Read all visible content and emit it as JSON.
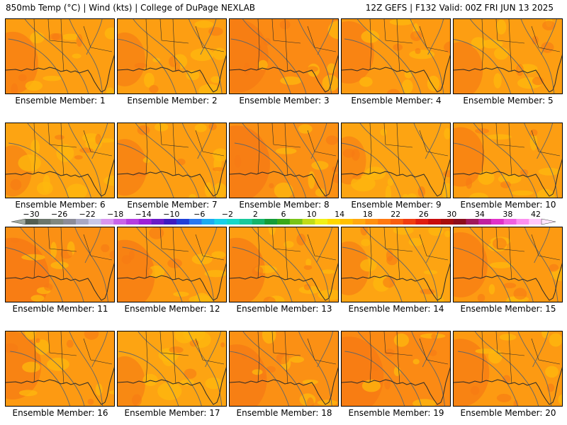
{
  "header": {
    "left": "850mb Temp (°C) | Wind (kts) | College of DuPage NEXLAB",
    "right": "12Z GEFS | F132 Valid: 00Z FRI JUN 13 2025"
  },
  "members": [
    {
      "label": "Ensemble Member: 1",
      "color": "#fd9e12",
      "hot": 0.35,
      "cool": 0.4
    },
    {
      "label": "Ensemble Member: 2",
      "color": "#fd9e12",
      "hot": 0.2,
      "cool": 0.6
    },
    {
      "label": "Ensemble Member: 3",
      "color": "#fb8a14",
      "hot": 0.55,
      "cool": 0.2
    },
    {
      "label": "Ensemble Member: 4",
      "color": "#fd9a12",
      "hot": 0.35,
      "cool": 0.5
    },
    {
      "label": "Ensemble Member: 5",
      "color": "#fd9e12",
      "hot": 0.25,
      "cool": 0.5
    },
    {
      "label": "Ensemble Member: 6",
      "color": "#fda412",
      "hot": 0.15,
      "cool": 0.7
    },
    {
      "label": "Ensemble Member: 7",
      "color": "#fd9e12",
      "hot": 0.25,
      "cool": 0.5
    },
    {
      "label": "Ensemble Member: 8",
      "color": "#fb9014",
      "hot": 0.6,
      "cool": 0.3
    },
    {
      "label": "Ensemble Member: 9",
      "color": "#fda412",
      "hot": 0.1,
      "cool": 0.8
    },
    {
      "label": "Ensemble Member: 10",
      "color": "#fd9e12",
      "hot": 0.3,
      "cool": 0.5
    },
    {
      "label": "Ensemble Member: 11",
      "color": "#fb9014",
      "hot": 0.7,
      "cool": 0.3
    },
    {
      "label": "Ensemble Member: 12",
      "color": "#fd9a12",
      "hot": 0.5,
      "cool": 0.4
    },
    {
      "label": "Ensemble Member: 13",
      "color": "#fd9e12",
      "hot": 0.45,
      "cool": 0.5
    },
    {
      "label": "Ensemble Member: 14",
      "color": "#fda412",
      "hot": 0.2,
      "cool": 0.6
    },
    {
      "label": "Ensemble Member: 15",
      "color": "#fd9a12",
      "hot": 0.4,
      "cool": 0.4
    },
    {
      "label": "Ensemble Member: 16",
      "color": "#fd9a12",
      "hot": 0.45,
      "cool": 0.4
    },
    {
      "label": "Ensemble Member: 17",
      "color": "#fda412",
      "hot": 0.2,
      "cool": 0.6
    },
    {
      "label": "Ensemble Member: 18",
      "color": "#fb9014",
      "hot": 0.5,
      "cool": 0.4
    },
    {
      "label": "Ensemble Member: 19",
      "color": "#fb8a14",
      "hot": 0.65,
      "cool": 0.3
    },
    {
      "label": "Ensemble Member: 20",
      "color": "#fd9a12",
      "hot": 0.45,
      "cool": 0.4
    }
  ],
  "colorbar": {
    "unit": "°C",
    "ticks": [
      "−30",
      "−26",
      "−22",
      "−18",
      "−14",
      "−10",
      "−6",
      "−2",
      "2",
      "6",
      "10",
      "14",
      "18",
      "22",
      "26",
      "30",
      "34",
      "38",
      "42"
    ],
    "colors": [
      "#525e52",
      "#6b766b",
      "#808880",
      "#8c8c99",
      "#a8a8c4",
      "#c8c8e8",
      "#d896f0",
      "#c864e8",
      "#b43ce0",
      "#9c20d8",
      "#6a1cc8",
      "#3c1cc0",
      "#2040d8",
      "#2878f0",
      "#1caaf0",
      "#18d0e8",
      "#14d8c8",
      "#18c89c",
      "#14b46c",
      "#149c38",
      "#38a818",
      "#78c418",
      "#c0dc18",
      "#f0f018",
      "#ffd800",
      "#ffc000",
      "#ffa810",
      "#ff9010",
      "#ff7810",
      "#f85c10",
      "#f03c10",
      "#e01c10",
      "#c80c0c",
      "#a80c0c",
      "#8c0c1c",
      "#a0185c",
      "#c020a0",
      "#e030c8",
      "#f060e0",
      "#fc90f0",
      "#ffc8fc"
    ]
  },
  "colors": {
    "warm": "#fd9e12",
    "hot": "#f67a14",
    "cool": "#fdb80e",
    "border": "#2a2a2a",
    "contour": "#666666"
  }
}
